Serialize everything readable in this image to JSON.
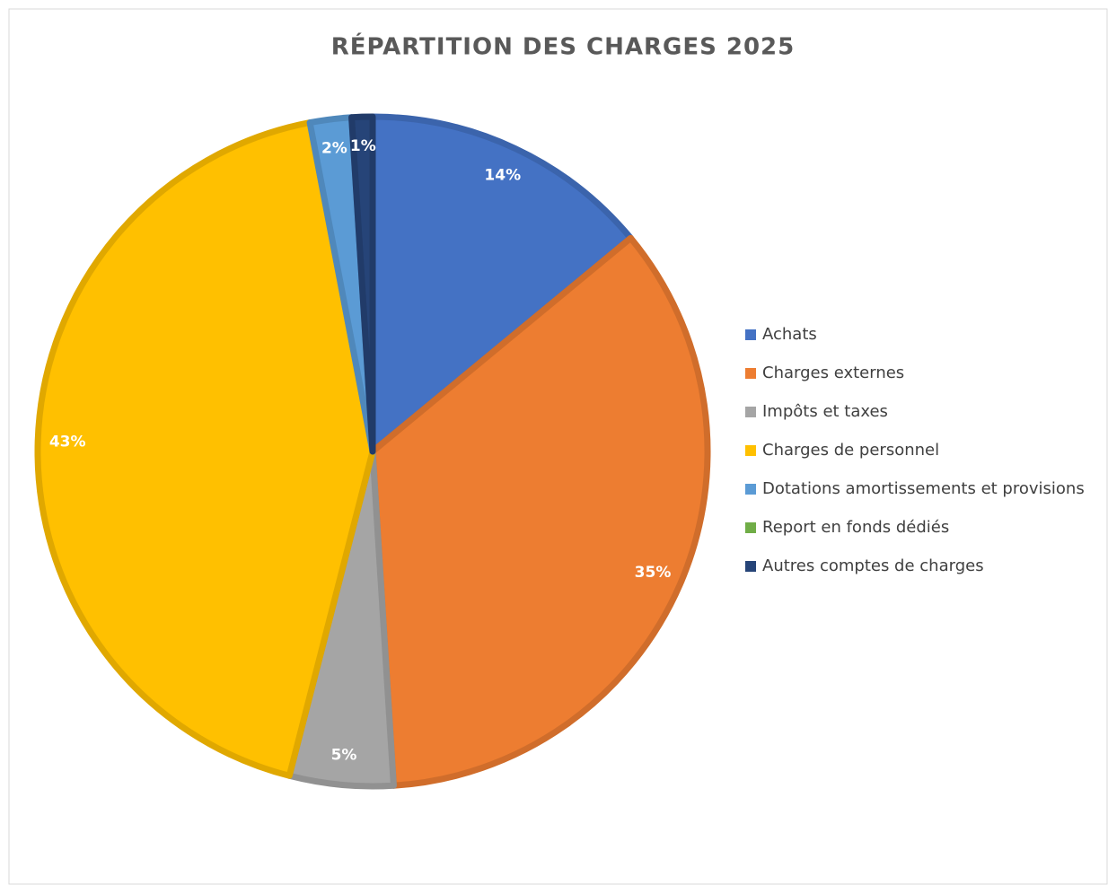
{
  "chart_data": {
    "type": "pie",
    "title": "RÉPARTITION DES CHARGES 2025",
    "categories": [
      "Achats",
      "Charges externes",
      "Impôts et taxes",
      "Charges de personnel",
      "Dotations amortissements et provisions",
      "Report en fonds dédiés",
      "Autres comptes de charges"
    ],
    "values": [
      14,
      35,
      5,
      43,
      2,
      0,
      1
    ],
    "value_labels": [
      "14%",
      "35%",
      "5%",
      "43%",
      "2%",
      null,
      "1%"
    ],
    "colors": [
      "#4472c4",
      "#ed7d31",
      "#a5a5a5",
      "#ffc000",
      "#5b9bd5",
      "#70ad47",
      "#264478"
    ],
    "legend": "right"
  }
}
